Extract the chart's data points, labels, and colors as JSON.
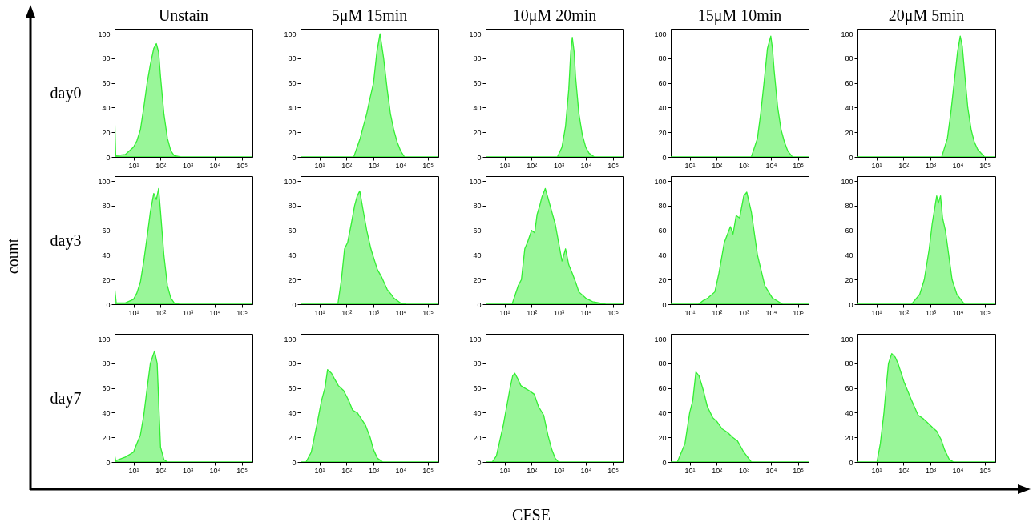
{
  "chart_data": [
    {
      "type": "area",
      "title": "Unstain",
      "ylabel": "day0",
      "x": [
        2,
        2.2,
        5,
        10,
        13.3,
        18,
        24,
        32,
        42,
        56,
        70,
        85,
        100,
        133,
        180,
        240,
        320,
        560,
        250000
      ],
      "values": [
        35,
        1,
        2,
        8,
        13,
        22,
        40,
        60,
        75,
        88,
        92,
        85,
        65,
        35,
        15,
        5,
        1,
        0,
        0
      ],
      "color": "#33ee33",
      "log": "x",
      "xlim": [
        2,
        250000
      ],
      "xticks": [
        {
          "value": 10,
          "label": "10¹"
        },
        {
          "value": 100,
          "label": "10²"
        },
        {
          "value": 1000,
          "label": "10³"
        },
        {
          "value": 10000,
          "label": "10⁴"
        },
        {
          "value": 100000,
          "label": "10⁵"
        }
      ],
      "ylim": [
        0,
        104
      ],
      "yticks": [
        0,
        20,
        40,
        60,
        80,
        100
      ]
    },
    {
      "type": "area",
      "title": "5μM 15min",
      "x": [
        2,
        186,
        320,
        560,
        750,
        1000,
        1330,
        1740,
        2370,
        3200,
        4220,
        5600,
        7500,
        10000,
        14000,
        250000
      ],
      "values": [
        0,
        0,
        15,
        35,
        48,
        60,
        85,
        100,
        80,
        55,
        35,
        22,
        12,
        5,
        0,
        0
      ],
      "color": "#33ee33",
      "log": "x",
      "xlim": [
        2,
        250000
      ],
      "xticks": [
        {
          "value": 10,
          "label": "10¹"
        },
        {
          "value": 100,
          "label": "10²"
        },
        {
          "value": 1000,
          "label": "10³"
        },
        {
          "value": 10000,
          "label": "10⁴"
        },
        {
          "value": 100000,
          "label": "10⁵"
        }
      ],
      "ylim": [
        0,
        104
      ],
      "yticks": [
        0,
        20,
        40,
        60,
        80,
        100
      ]
    },
    {
      "type": "area",
      "title": "10μM 20min",
      "x": [
        2,
        900,
        1330,
        1800,
        2370,
        2800,
        3200,
        3750,
        4220,
        5600,
        7500,
        10000,
        13300,
        21000,
        250000
      ],
      "values": [
        0,
        0,
        8,
        25,
        55,
        85,
        97,
        85,
        65,
        35,
        18,
        8,
        3,
        0,
        0
      ],
      "color": "#33ee33",
      "log": "x",
      "xlim": [
        2,
        250000
      ],
      "xticks": [
        {
          "value": 10,
          "label": "10¹"
        },
        {
          "value": 100,
          "label": "10²"
        },
        {
          "value": 1000,
          "label": "10³"
        },
        {
          "value": 10000,
          "label": "10⁴"
        },
        {
          "value": 100000,
          "label": "10⁵"
        }
      ],
      "ylim": [
        0,
        104
      ],
      "yticks": [
        0,
        20,
        40,
        60,
        80,
        100
      ]
    },
    {
      "type": "area",
      "title": "15μM 10min",
      "x": [
        2,
        1900,
        3200,
        4220,
        5600,
        7500,
        10000,
        11500,
        13300,
        18000,
        24000,
        32000,
        42000,
        63000,
        250000
      ],
      "values": [
        0,
        0,
        15,
        35,
        60,
        88,
        98,
        88,
        70,
        40,
        22,
        12,
        5,
        0,
        0
      ],
      "color": "#33ee33",
      "log": "x",
      "xlim": [
        2,
        250000
      ],
      "xticks": [
        {
          "value": 10,
          "label": "10¹"
        },
        {
          "value": 100,
          "label": "10²"
        },
        {
          "value": 1000,
          "label": "10³"
        },
        {
          "value": 10000,
          "label": "10⁴"
        },
        {
          "value": 100000,
          "label": "10⁵"
        }
      ],
      "ylim": [
        0,
        104
      ],
      "yticks": [
        0,
        20,
        40,
        60,
        80,
        100
      ]
    },
    {
      "type": "area",
      "title": "20μM 5min",
      "x": [
        2,
        2600,
        4220,
        5600,
        7500,
        10000,
        12600,
        15000,
        18000,
        24000,
        32000,
        42000,
        56000,
        100000,
        250000
      ],
      "values": [
        0,
        0,
        15,
        35,
        60,
        85,
        98,
        90,
        70,
        40,
        22,
        12,
        6,
        0,
        0
      ],
      "color": "#33ee33",
      "log": "x",
      "xlim": [
        2,
        250000
      ],
      "xticks": [
        {
          "value": 10,
          "label": "10¹"
        },
        {
          "value": 100,
          "label": "10²"
        },
        {
          "value": 1000,
          "label": "10³"
        },
        {
          "value": 10000,
          "label": "10⁴"
        },
        {
          "value": 100000,
          "label": "10⁵"
        }
      ],
      "ylim": [
        0,
        104
      ],
      "yticks": [
        0,
        20,
        40,
        60,
        80,
        100
      ]
    },
    {
      "type": "area",
      "ylabel": "day3",
      "x": [
        2,
        2.3,
        5,
        10,
        13.3,
        18,
        24,
        32,
        42,
        56,
        70,
        85,
        100,
        133,
        180,
        240,
        320,
        500,
        250000
      ],
      "values": [
        14,
        1,
        1,
        4,
        9,
        18,
        35,
        55,
        75,
        90,
        85,
        94,
        75,
        40,
        15,
        5,
        1,
        0,
        0
      ],
      "color": "#33ee33",
      "log": "x",
      "xlim": [
        2,
        250000
      ],
      "xticks": [
        {
          "value": 10,
          "label": "10¹"
        },
        {
          "value": 100,
          "label": "10²"
        },
        {
          "value": 1000,
          "label": "10³"
        },
        {
          "value": 10000,
          "label": "10⁴"
        },
        {
          "value": 100000,
          "label": "10⁵"
        }
      ],
      "ylim": [
        0,
        104
      ],
      "yticks": [
        0,
        20,
        40,
        60,
        80,
        100
      ]
    },
    {
      "type": "area",
      "x": [
        2,
        48,
        65,
        85,
        110,
        150,
        200,
        250,
        310,
        400,
        560,
        800,
        1000,
        1400,
        2000,
        3200,
        4500,
        5600,
        10000,
        16000,
        250000
      ],
      "values": [
        0,
        0,
        20,
        45,
        50,
        65,
        80,
        88,
        92,
        78,
        60,
        45,
        38,
        28,
        22,
        12,
        8,
        5,
        1,
        0,
        0
      ],
      "color": "#33ee33",
      "log": "x",
      "xlim": [
        2,
        250000
      ],
      "xticks": [
        {
          "value": 10,
          "label": "10¹"
        },
        {
          "value": 100,
          "label": "10²"
        },
        {
          "value": 1000,
          "label": "10³"
        },
        {
          "value": 10000,
          "label": "10⁴"
        },
        {
          "value": 100000,
          "label": "10⁵"
        }
      ],
      "ylim": [
        0,
        104
      ],
      "yticks": [
        0,
        20,
        40,
        60,
        80,
        100
      ]
    },
    {
      "type": "area",
      "x": [
        2,
        19,
        32,
        42,
        56,
        70,
        100,
        130,
        160,
        200,
        240,
        320,
        420,
        560,
        750,
        1000,
        1330,
        1800,
        2370,
        3200,
        4220,
        5600,
        10000,
        18000,
        56000,
        250000
      ],
      "values": [
        0,
        0,
        15,
        20,
        45,
        50,
        60,
        58,
        73,
        80,
        87,
        94,
        85,
        75,
        65,
        50,
        35,
        45,
        32,
        25,
        18,
        10,
        5,
        2,
        0,
        0
      ],
      "color": "#33ee33",
      "log": "x",
      "xlim": [
        2,
        250000
      ],
      "xticks": [
        {
          "value": 10,
          "label": "10¹"
        },
        {
          "value": 100,
          "label": "10²"
        },
        {
          "value": 1000,
          "label": "10³"
        },
        {
          "value": 10000,
          "label": "10⁴"
        },
        {
          "value": 100000,
          "label": "10⁵"
        }
      ],
      "ylim": [
        0,
        104
      ],
      "yticks": [
        0,
        20,
        40,
        60,
        80,
        100
      ]
    },
    {
      "type": "area",
      "x": [
        2,
        21,
        32,
        47,
        85,
        120,
        190,
        320,
        400,
        525,
        700,
        1000,
        1290,
        1900,
        3200,
        6000,
        11500,
        27500,
        250000
      ],
      "values": [
        0,
        0,
        3,
        5,
        10,
        25,
        50,
        63,
        57,
        72,
        70,
        88,
        91,
        75,
        40,
        15,
        5,
        0,
        0
      ],
      "color": "#33ee33",
      "log": "x",
      "xlim": [
        2,
        250000
      ],
      "xticks": [
        {
          "value": 10,
          "label": "10¹"
        },
        {
          "value": 100,
          "label": "10²"
        },
        {
          "value": 1000,
          "label": "10³"
        },
        {
          "value": 10000,
          "label": "10⁴"
        },
        {
          "value": 100000,
          "label": "10⁵"
        }
      ],
      "ylim": [
        0,
        104
      ],
      "yticks": [
        0,
        20,
        40,
        60,
        80,
        100
      ]
    },
    {
      "type": "area",
      "x": [
        2,
        200,
        400,
        590,
        900,
        1150,
        1700,
        1950,
        2350,
        2800,
        3550,
        6300,
        9500,
        18000,
        250000
      ],
      "values": [
        0,
        0,
        8,
        20,
        45,
        65,
        88,
        82,
        88,
        70,
        60,
        20,
        8,
        0,
        0
      ],
      "color": "#33ee33",
      "log": "x",
      "xlim": [
        2,
        250000
      ],
      "xticks": [
        {
          "value": 10,
          "label": "10¹"
        },
        {
          "value": 100,
          "label": "10²"
        },
        {
          "value": 1000,
          "label": "10³"
        },
        {
          "value": 10000,
          "label": "10⁴"
        },
        {
          "value": 100000,
          "label": "10⁵"
        }
      ],
      "ylim": [
        0,
        104
      ],
      "yticks": [
        0,
        20,
        40,
        60,
        80,
        100
      ]
    },
    {
      "type": "area",
      "ylabel": "day7",
      "x": [
        2,
        2.2,
        5,
        10,
        13.3,
        18,
        24,
        32,
        42,
        50,
        60,
        75,
        85,
        100,
        133,
        180,
        250000
      ],
      "values": [
        6,
        1,
        4,
        8,
        15,
        22,
        38,
        60,
        80,
        85,
        90,
        80,
        50,
        12,
        2,
        0,
        0
      ],
      "color": "#33ee33",
      "log": "x",
      "xlim": [
        2,
        250000
      ],
      "xticks": [
        {
          "value": 10,
          "label": "10¹"
        },
        {
          "value": 100,
          "label": "10²"
        },
        {
          "value": 1000,
          "label": "10³"
        },
        {
          "value": 10000,
          "label": "10⁴"
        },
        {
          "value": 100000,
          "label": "10⁵"
        }
      ],
      "ylim": [
        0,
        104
      ],
      "yticks": [
        0,
        20,
        40,
        60,
        80,
        100
      ]
    },
    {
      "type": "area",
      "x": [
        2,
        3.2,
        5,
        8,
        12,
        16,
        20,
        28,
        35,
        50,
        78,
        120,
        170,
        250,
        500,
        750,
        1000,
        1400,
        2200,
        250000
      ],
      "values": [
        0,
        0,
        8,
        30,
        50,
        60,
        75,
        72,
        68,
        62,
        58,
        50,
        42,
        40,
        30,
        20,
        10,
        3,
        0,
        0
      ],
      "color": "#33ee33",
      "log": "x",
      "xlim": [
        2,
        250000
      ],
      "xticks": [
        {
          "value": 10,
          "label": "10¹"
        },
        {
          "value": 100,
          "label": "10²"
        },
        {
          "value": 1000,
          "label": "10³"
        },
        {
          "value": 10000,
          "label": "10⁴"
        },
        {
          "value": 100000,
          "label": "10⁵"
        }
      ],
      "ylim": [
        0,
        104
      ],
      "yticks": [
        0,
        20,
        40,
        60,
        80,
        100
      ]
    },
    {
      "type": "area",
      "x": [
        2,
        3.5,
        5,
        9,
        16,
        20,
        24,
        30,
        40,
        55,
        80,
        125,
        180,
        280,
        400,
        560,
        750,
        980,
        250000
      ],
      "values": [
        0,
        0,
        5,
        30,
        60,
        70,
        72,
        68,
        62,
        60,
        58,
        55,
        45,
        38,
        22,
        10,
        3,
        0,
        0
      ],
      "color": "#33ee33",
      "log": "x",
      "xlim": [
        2,
        250000
      ],
      "xticks": [
        {
          "value": 10,
          "label": "10¹"
        },
        {
          "value": 100,
          "label": "10²"
        },
        {
          "value": 1000,
          "label": "10³"
        },
        {
          "value": 10000,
          "label": "10⁴"
        },
        {
          "value": 100000,
          "label": "10⁵"
        }
      ],
      "ylim": [
        0,
        104
      ],
      "yticks": [
        0,
        20,
        40,
        60,
        80,
        100
      ]
    },
    {
      "type": "area",
      "x": [
        2,
        3.5,
        6.7,
        10,
        13,
        17,
        22,
        32,
        45,
        71,
        100,
        156,
        250,
        390,
        590,
        1000,
        1900,
        250000
      ],
      "values": [
        0,
        0,
        15,
        40,
        50,
        73,
        70,
        58,
        45,
        36,
        33,
        27,
        24,
        20,
        17,
        8,
        0,
        0
      ],
      "color": "#33ee33",
      "log": "x",
      "xlim": [
        2,
        250000
      ],
      "xticks": [
        {
          "value": 10,
          "label": "10¹"
        },
        {
          "value": 100,
          "label": "10²"
        },
        {
          "value": 1000,
          "label": "10³"
        },
        {
          "value": 10000,
          "label": "10⁴"
        },
        {
          "value": 100000,
          "label": "10⁵"
        }
      ],
      "ylim": [
        0,
        104
      ],
      "yticks": [
        0,
        20,
        40,
        60,
        80,
        100
      ]
    },
    {
      "type": "area",
      "x": [
        2,
        10.5,
        14,
        19,
        24,
        28,
        37,
        50,
        63,
        105,
        200,
        350,
        550,
        770,
        1200,
        1700,
        2500,
        3300,
        5000,
        7200,
        250000
      ],
      "values": [
        0,
        0,
        15,
        40,
        65,
        80,
        88,
        85,
        80,
        65,
        50,
        38,
        35,
        32,
        28,
        25,
        18,
        10,
        2,
        0,
        0
      ],
      "color": "#33ee33",
      "log": "x",
      "xlim": [
        2,
        250000
      ],
      "xticks": [
        {
          "value": 10,
          "label": "10¹"
        },
        {
          "value": 100,
          "label": "10²"
        },
        {
          "value": 1000,
          "label": "10³"
        },
        {
          "value": 10000,
          "label": "10⁴"
        },
        {
          "value": 100000,
          "label": "10⁵"
        }
      ],
      "ylim": [
        0,
        104
      ],
      "yticks": [
        0,
        20,
        40,
        60,
        80,
        100
      ]
    },
    {
      "type": "other",
      "annotations": [
        "count",
        "CFSE"
      ]
    }
  ]
}
